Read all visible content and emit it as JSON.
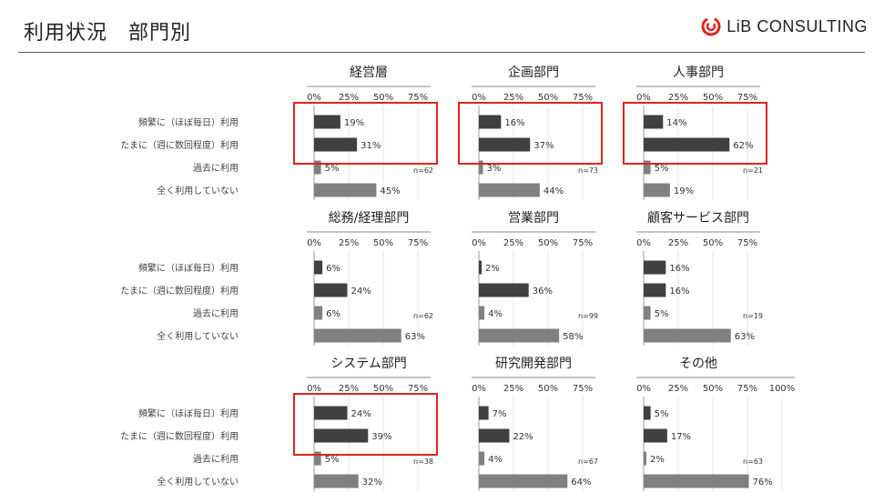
{
  "header": {
    "title": "利用状況　部門別",
    "logo_text": "LiB CONSULTING",
    "accent_color": "#e2231a"
  },
  "colors": {
    "dark": "#404040",
    "light": "#808080",
    "highlight": "#e2231a"
  },
  "chart_data": [
    {
      "type": "bar",
      "title": "経営層",
      "categories": [
        "頻繁に（ほぼ毎日）利用",
        "たまに（週に数回程度）利用",
        "過去に利用",
        "全く利用していない"
      ],
      "values": [
        19,
        31,
        5,
        45
      ],
      "value_labels": [
        "19%",
        "31%",
        "5%",
        "45%"
      ],
      "n_label": "n=62",
      "xticks": [
        "0%",
        "25%",
        "50%",
        "75%"
      ],
      "xlim": [
        0,
        75
      ],
      "highlight_rows": [
        0,
        1
      ]
    },
    {
      "type": "bar",
      "title": "企画部門",
      "categories": [
        "頻繁に（ほぼ毎日）利用",
        "たまに（週に数回程度）利用",
        "過去に利用",
        "全く利用していない"
      ],
      "values": [
        16,
        37,
        3,
        44
      ],
      "value_labels": [
        "16%",
        "37%",
        "3%",
        "44%"
      ],
      "n_label": "n=73",
      "xticks": [
        "0%",
        "25%",
        "50%",
        "75%"
      ],
      "xlim": [
        0,
        75
      ],
      "highlight_rows": [
        0,
        1
      ]
    },
    {
      "type": "bar",
      "title": "人事部門",
      "categories": [
        "頻繁に（ほぼ毎日）利用",
        "たまに（週に数回程度）利用",
        "過去に利用",
        "全く利用していない"
      ],
      "values": [
        14,
        62,
        5,
        19
      ],
      "value_labels": [
        "14%",
        "62%",
        "5%",
        "19%"
      ],
      "n_label": "n=21",
      "xticks": [
        "0%",
        "25%",
        "50%",
        "75%"
      ],
      "xlim": [
        0,
        75
      ],
      "highlight_rows": [
        0,
        1
      ]
    },
    {
      "type": "bar",
      "title": "総務/経理部門",
      "categories": [
        "頻繁に（ほぼ毎日）利用",
        "たまに（週に数回程度）利用",
        "過去に利用",
        "全く利用していない"
      ],
      "values": [
        6,
        24,
        6,
        63
      ],
      "value_labels": [
        "6%",
        "24%",
        "6%",
        "63%"
      ],
      "n_label": "n=62",
      "xticks": [
        "0%",
        "25%",
        "50%",
        "75%"
      ],
      "xlim": [
        0,
        75
      ],
      "highlight_rows": []
    },
    {
      "type": "bar",
      "title": "営業部門",
      "categories": [
        "頻繁に（ほぼ毎日）利用",
        "たまに（週に数回程度）利用",
        "過去に利用",
        "全く利用していない"
      ],
      "values": [
        2,
        36,
        4,
        58
      ],
      "value_labels": [
        "2%",
        "36%",
        "4%",
        "58%"
      ],
      "n_label": "n=99",
      "xticks": [
        "0%",
        "25%",
        "50%",
        "75%"
      ],
      "xlim": [
        0,
        75
      ],
      "highlight_rows": []
    },
    {
      "type": "bar",
      "title": "顧客サービス部門",
      "categories": [
        "頻繁に（ほぼ毎日）利用",
        "たまに（週に数回程度）利用",
        "過去に利用",
        "全く利用していない"
      ],
      "values": [
        16,
        16,
        5,
        63
      ],
      "value_labels": [
        "16%",
        "16%",
        "5%",
        "63%"
      ],
      "n_label": "n=19",
      "xticks": [
        "0%",
        "25%",
        "50%",
        "75%"
      ],
      "xlim": [
        0,
        75
      ],
      "highlight_rows": []
    },
    {
      "type": "bar",
      "title": "システム部門",
      "categories": [
        "頻繁に（ほぼ毎日）利用",
        "たまに（週に数回程度）利用",
        "過去に利用",
        "全く利用していない"
      ],
      "values": [
        24,
        39,
        5,
        32
      ],
      "value_labels": [
        "24%",
        "39%",
        "5%",
        "32%"
      ],
      "n_label": "n=38",
      "xticks": [
        "0%",
        "25%",
        "50%",
        "75%"
      ],
      "xlim": [
        0,
        75
      ],
      "highlight_rows": [
        0,
        1
      ]
    },
    {
      "type": "bar",
      "title": "研究開発部門",
      "categories": [
        "頻繁に（ほぼ毎日）利用",
        "たまに（週に数回程度）利用",
        "過去に利用",
        "全く利用していない"
      ],
      "values": [
        7,
        22,
        4,
        64
      ],
      "value_labels": [
        "7%",
        "22%",
        "4%",
        "64%"
      ],
      "n_label": "n=67",
      "xticks": [
        "0%",
        "25%",
        "50%",
        "75%"
      ],
      "xlim": [
        0,
        75
      ],
      "highlight_rows": []
    },
    {
      "type": "bar",
      "title": "その他",
      "categories": [
        "頻繁に（ほぼ毎日）利用",
        "たまに（週に数回程度）利用",
        "過去に利用",
        "全く利用していない"
      ],
      "values": [
        5,
        17,
        2,
        76
      ],
      "value_labels": [
        "5%",
        "17%",
        "2%",
        "76%"
      ],
      "n_label": "n=63",
      "xticks": [
        "0%",
        "25%",
        "50%",
        "75%",
        "100%"
      ],
      "xlim": [
        0,
        100
      ],
      "highlight_rows": []
    }
  ]
}
